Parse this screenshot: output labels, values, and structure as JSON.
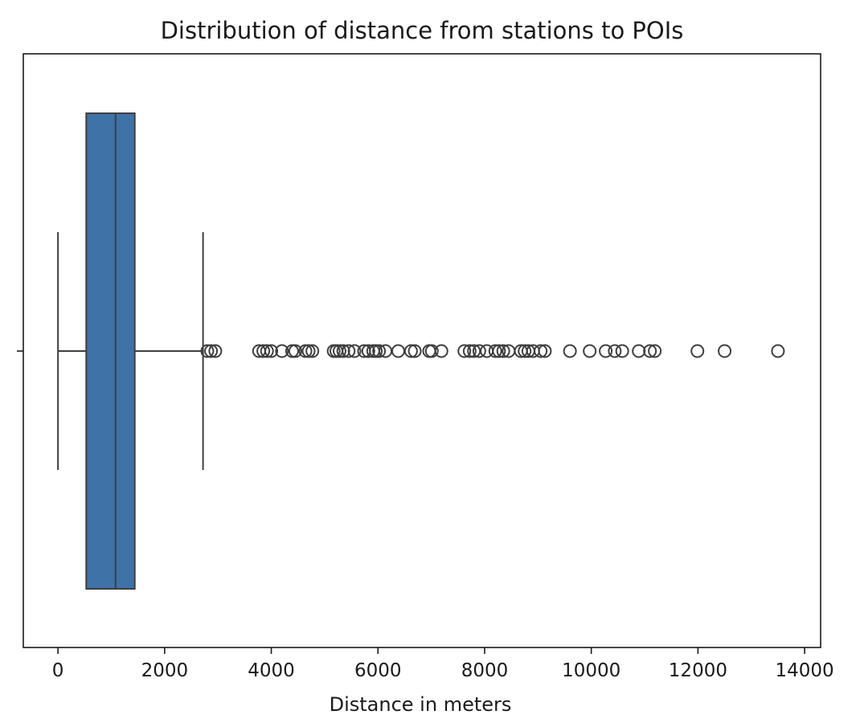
{
  "chart_data": {
    "type": "box",
    "orientation": "horizontal",
    "title": "Distribution of distance from stations to POIs",
    "xlabel": "Distance in meters",
    "ylabel": "",
    "xlim": [
      -650,
      14300
    ],
    "xticks": [
      0,
      2000,
      4000,
      6000,
      8000,
      10000,
      12000,
      14000
    ],
    "xtick_labels": [
      "0",
      "2000",
      "4000",
      "6000",
      "8000",
      "10000",
      "12000",
      "14000"
    ],
    "grid": false,
    "box_color": "#3f72a6",
    "line_color": "#3f3f3f",
    "stats": {
      "whisker_low": 0,
      "q1": 530,
      "median": 1080,
      "q3": 1440,
      "whisker_high": 2720
    },
    "outliers": [
      2800,
      2870,
      2950,
      3770,
      3850,
      3920,
      4000,
      4200,
      4390,
      4450,
      4640,
      4700,
      4770,
      5170,
      5220,
      5280,
      5350,
      5450,
      5560,
      5740,
      5820,
      5910,
      5960,
      6020,
      6140,
      6380,
      6620,
      6690,
      6960,
      7010,
      7190,
      7620,
      7720,
      7800,
      7900,
      8040,
      8200,
      8270,
      8350,
      8450,
      8680,
      8750,
      8820,
      8910,
      9050,
      9130,
      9600,
      9970,
      10270,
      10440,
      10580,
      10890,
      11100,
      11190,
      11990,
      12500,
      13500
    ]
  }
}
